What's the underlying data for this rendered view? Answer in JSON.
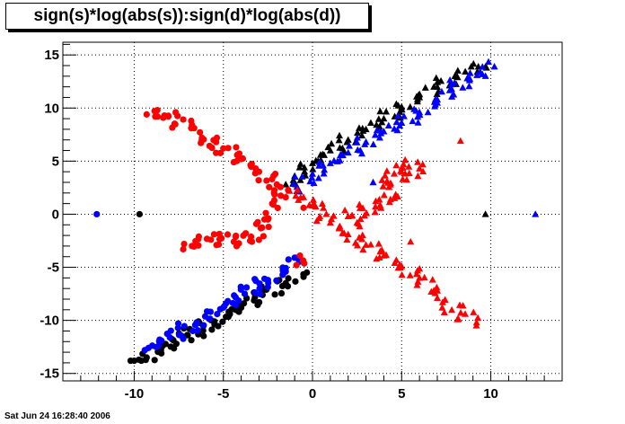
{
  "chart_data": {
    "type": "scatter",
    "title": "sign(s)*log(abs(s)):sign(d)*log(abs(d))",
    "xlabel": "",
    "ylabel": "",
    "xlim": [
      -14,
      14
    ],
    "ylim": [
      -15.7,
      16.2
    ],
    "x_ticks": [
      -10,
      -5,
      0,
      5,
      10
    ],
    "y_ticks": [
      -15,
      -10,
      -5,
      0,
      5,
      10,
      15
    ],
    "grid": true,
    "legend": "none",
    "series": [
      {
        "color": "#000000",
        "marker": "circle",
        "points": [
          [
            -9.7,
            0
          ],
          [
            -10.2,
            -13.8
          ],
          [
            -10.0,
            -13.8
          ],
          [
            -9.6,
            -13.8
          ],
          [
            -9.3,
            -13.5
          ],
          [
            -8.5,
            -12.8
          ],
          [
            -7.0,
            -11.4
          ],
          [
            -5.5,
            -10.1
          ],
          [
            -4.0,
            -8.8
          ],
          [
            -2.8,
            -7.6
          ],
          [
            -1.5,
            -6.5
          ],
          [
            -0.5,
            -5.9
          ]
        ]
      },
      {
        "color": "#000000",
        "marker": "triangle",
        "points": [
          [
            -1.5,
            2.8
          ],
          [
            -1.0,
            3.6
          ],
          [
            0,
            4.8
          ],
          [
            1.0,
            6.0
          ],
          [
            2.0,
            7.0
          ],
          [
            3.0,
            8.0
          ],
          [
            4.0,
            9.0
          ],
          [
            5.0,
            10.1
          ],
          [
            6.0,
            11.0
          ],
          [
            7.0,
            12.0
          ],
          [
            8.0,
            13.0
          ],
          [
            8.9,
            13.9
          ],
          [
            9.3,
            13.9
          ],
          [
            9.7,
            13.9
          ],
          [
            9.7,
            0
          ]
        ]
      },
      {
        "color": "#0000ff",
        "marker": "circle",
        "points": [
          [
            -12.1,
            0
          ],
          [
            -9.4,
            -12.8
          ],
          [
            -9.2,
            -12.6
          ],
          [
            -8.0,
            -11.6
          ],
          [
            -6.5,
            -10.2
          ],
          [
            -5.0,
            -8.8
          ],
          [
            -3.8,
            -7.5
          ],
          [
            -2.5,
            -6.2
          ],
          [
            -1.5,
            -5.4
          ],
          [
            -1.0,
            -4.1
          ]
        ]
      },
      {
        "color": "#0000ff",
        "marker": "triangle",
        "points": [
          [
            -1.3,
            2.2
          ],
          [
            0,
            3.8
          ],
          [
            1.0,
            4.8
          ],
          [
            2.0,
            5.8
          ],
          [
            3.0,
            6.8
          ],
          [
            4.0,
            7.8
          ],
          [
            5.0,
            8.6
          ],
          [
            6.0,
            9.6
          ],
          [
            7.0,
            10.5
          ],
          [
            7.8,
            11.8
          ],
          [
            8.7,
            12.8
          ],
          [
            9.4,
            13.4
          ],
          [
            10.2,
            13.9
          ],
          [
            12.5,
            0
          ],
          [
            3.4,
            3.0
          ]
        ]
      },
      {
        "color": "#ff0000",
        "marker": "circle",
        "points": [
          [
            -9.3,
            9.4
          ],
          [
            -8.7,
            9.8
          ],
          [
            -8.3,
            9.3
          ],
          [
            -6.8,
            8.1
          ],
          [
            -6.2,
            7.2
          ],
          [
            -5.0,
            6.2
          ],
          [
            -4.0,
            5.2
          ],
          [
            -3.0,
            4.0
          ],
          [
            -2.0,
            2.8
          ],
          [
            -1.5,
            1.6
          ],
          [
            -2.2,
            0.9
          ],
          [
            -2.5,
            -0.5
          ],
          [
            -3.5,
            -2.5
          ],
          [
            -5.7,
            -2.4
          ],
          [
            -7.2,
            -2.8
          ],
          [
            -0.7,
            -3.9
          ],
          [
            -0.9,
            -4.8
          ],
          [
            -0.5,
            0.6
          ]
        ]
      },
      {
        "color": "#ff0000",
        "marker": "triangle",
        "points": [
          [
            -1.3,
            2.2
          ],
          [
            -0.5,
            1.6
          ],
          [
            0,
            0.8
          ],
          [
            1.0,
            -0.8
          ],
          [
            2.0,
            -1.9
          ],
          [
            3.0,
            -2.9
          ],
          [
            4.0,
            -3.9
          ],
          [
            5.0,
            -4.9
          ],
          [
            6.0,
            -6.0
          ],
          [
            7.0,
            -7.2
          ],
          [
            7.3,
            -8.3
          ],
          [
            9.2,
            -10.2
          ],
          [
            8.3,
            6.9
          ],
          [
            4.7,
            4.6
          ],
          [
            6.0,
            4.3
          ],
          [
            3.9,
            3.2
          ],
          [
            4.6,
            1.5
          ],
          [
            2.0,
            -0.2
          ],
          [
            2.5,
            -0.8
          ],
          [
            5.5,
            -2.6
          ]
        ]
      }
    ]
  },
  "footer": {
    "timestamp": "Sat Jun 24 16:28:40 2006"
  }
}
